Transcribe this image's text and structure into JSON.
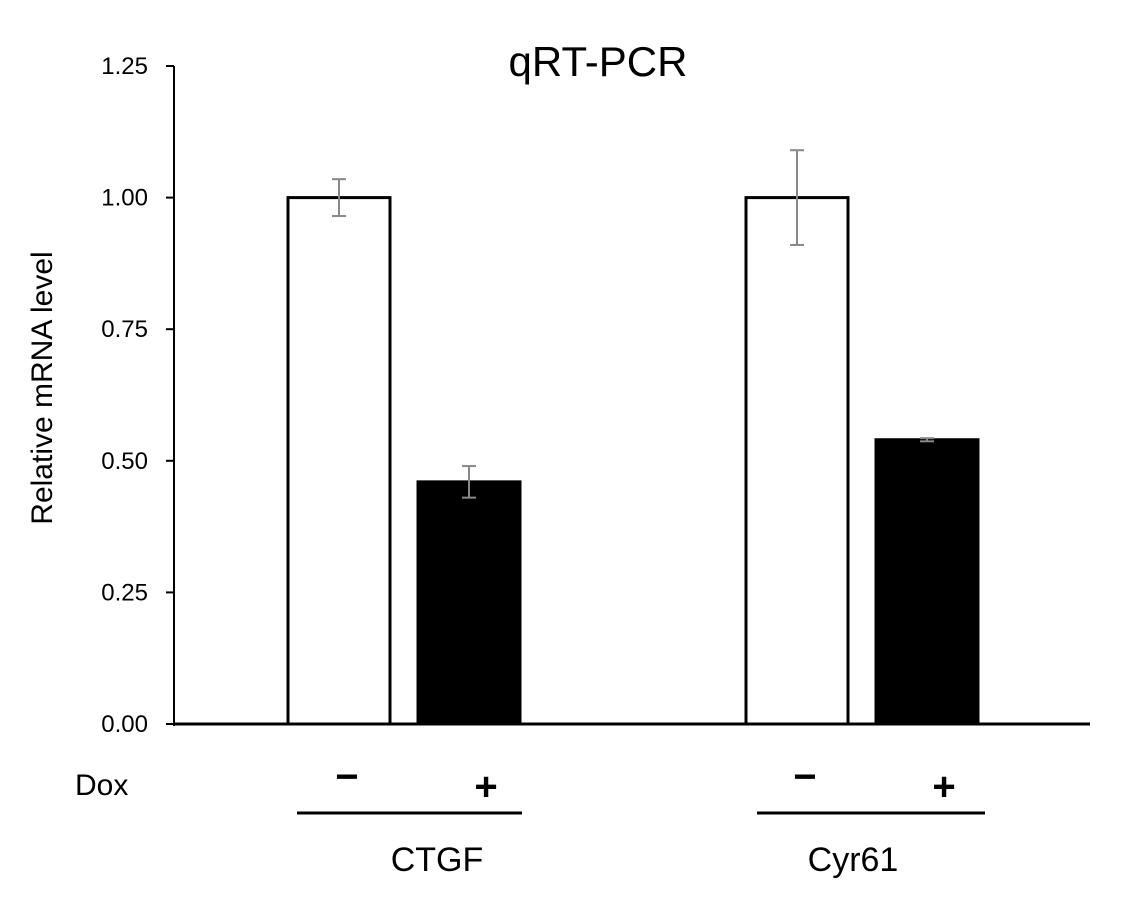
{
  "chart_data": {
    "type": "bar",
    "title": "qRT-PCR",
    "ylabel": "Relative mRNA level",
    "xlabel": "",
    "ylim": [
      0,
      1.25
    ],
    "yticks": [
      "0.00",
      "0.25",
      "0.50",
      "0.75",
      "1.00",
      "1.25"
    ],
    "row_label": "Dox",
    "groups": [
      {
        "name": "CTGF",
        "bars": [
          {
            "dox": "−",
            "value": 1.0,
            "error": 0.035,
            "fill": "#ffffff"
          },
          {
            "dox": "+",
            "value": 0.46,
            "error": 0.03,
            "fill": "#000000"
          }
        ]
      },
      {
        "name": "Cyr61",
        "bars": [
          {
            "dox": "−",
            "value": 1.0,
            "error": 0.09,
            "fill": "#ffffff"
          },
          {
            "dox": "+",
            "value": 0.54,
            "error": 0.003,
            "fill": "#000000"
          }
        ]
      }
    ],
    "grid": false,
    "legend": "none"
  }
}
